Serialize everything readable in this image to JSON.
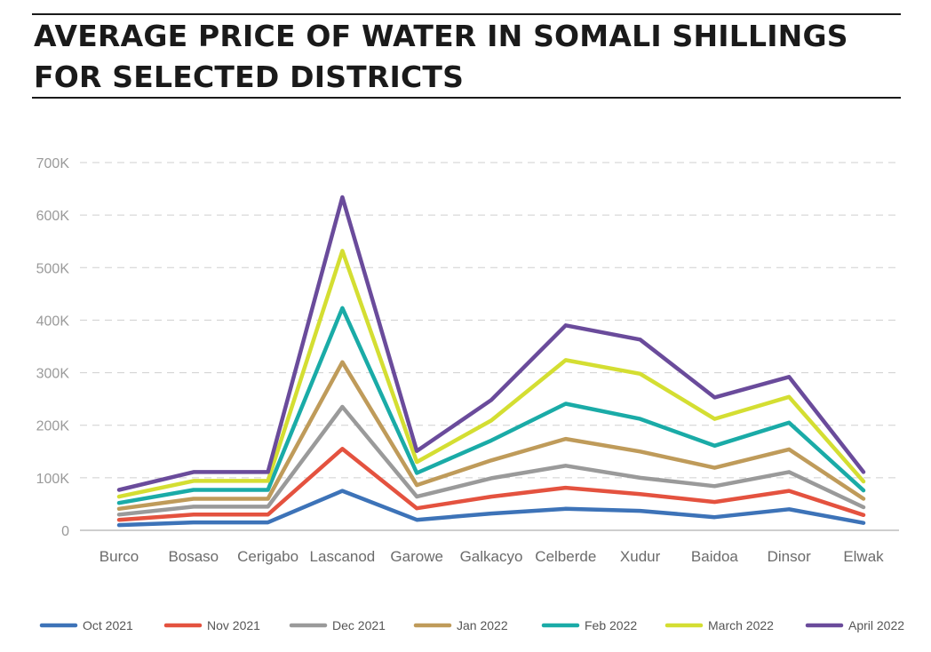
{
  "title": "AVERAGE PRICE OF WATER IN SOMALI SHILLINGS FOR SELECTED DISTRICTS",
  "chart_data": {
    "type": "line",
    "title": "AVERAGE PRICE OF WATER IN SOMALI SHILLINGS FOR SELECTED DISTRICTS",
    "xlabel": "",
    "ylabel": "",
    "ylim": [
      0,
      700000
    ],
    "yticks": [
      0,
      100000,
      200000,
      300000,
      400000,
      500000,
      600000,
      700000
    ],
    "ytick_labels": [
      "0",
      "100K",
      "200K",
      "300K",
      "400K",
      "500K",
      "600K",
      "700K"
    ],
    "grid": "horizontal-dashed",
    "legend_position": "bottom",
    "categories": [
      "Burco",
      "Bosaso",
      "Cerigabo",
      "Lascanod",
      "Garowe",
      "Galkacyo",
      "Celberde",
      "Xudur",
      "Baidoa",
      "Dinsor",
      "Elwak"
    ],
    "series": [
      {
        "name": "Oct 2021",
        "color": "#3d73b8",
        "values": [
          10000,
          15000,
          15000,
          75000,
          20000,
          32000,
          41000,
          37000,
          25000,
          40000,
          14000
        ]
      },
      {
        "name": "Nov 2021",
        "color": "#e4523f",
        "values": [
          20000,
          30000,
          30000,
          155000,
          42000,
          64000,
          81000,
          69000,
          54000,
          75000,
          29000
        ]
      },
      {
        "name": "Dec 2021",
        "color": "#9a9a9a",
        "values": [
          30000,
          45000,
          45000,
          235000,
          64000,
          99000,
          123000,
          100000,
          84000,
          111000,
          44000
        ]
      },
      {
        "name": "Jan 2022",
        "color": "#bf9b5a",
        "values": [
          41000,
          60000,
          60000,
          320000,
          86000,
          133000,
          174000,
          150000,
          119000,
          154000,
          60000
        ]
      },
      {
        "name": "Feb 2022",
        "color": "#1aaba7",
        "values": [
          52000,
          77000,
          77000,
          423000,
          109000,
          171000,
          241000,
          212000,
          161000,
          205000,
          76000
        ]
      },
      {
        "name": "March 2022",
        "color": "#d4de32",
        "values": [
          64000,
          94000,
          94000,
          532000,
          130000,
          209000,
          324000,
          298000,
          212000,
          254000,
          93000
        ]
      },
      {
        "name": "April 2022",
        "color": "#6a4b9b",
        "values": [
          77000,
          111000,
          111000,
          634000,
          151000,
          248000,
          390000,
          363000,
          253000,
          292000,
          111000
        ]
      }
    ]
  }
}
